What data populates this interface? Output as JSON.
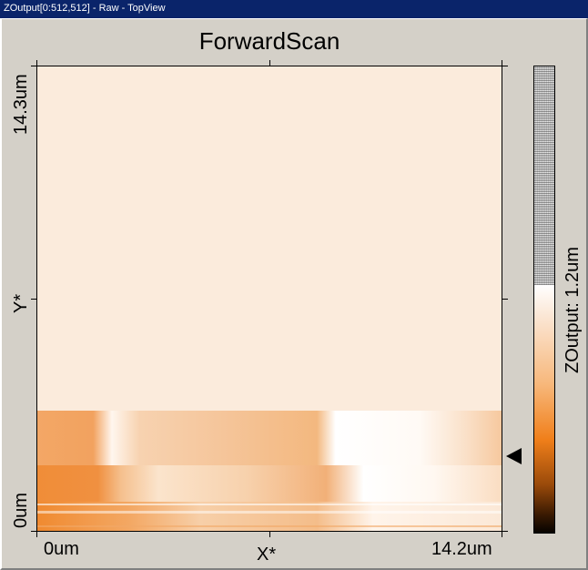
{
  "window": {
    "title": "ZOutput[0:512,512] - Raw - TopView"
  },
  "plot": {
    "title": "ForwardScan",
    "y_axis": {
      "top_label": "14.3um",
      "mid_label": "Y*",
      "bottom_label": "0um"
    },
    "x_axis": {
      "left_label": "0um",
      "mid_label": "X*",
      "right_label": "14.2um"
    }
  },
  "colorbar": {
    "label": "ZOutput: 1.2um",
    "marker_level": 0.13
  },
  "colors": {
    "background": "#fbebdc",
    "light": "#ffffff",
    "orange": "#f0a060",
    "deep_orange": "#f08a30",
    "titlebar": "#0a246a"
  },
  "scan": {
    "scanned_fraction": 0.26
  }
}
